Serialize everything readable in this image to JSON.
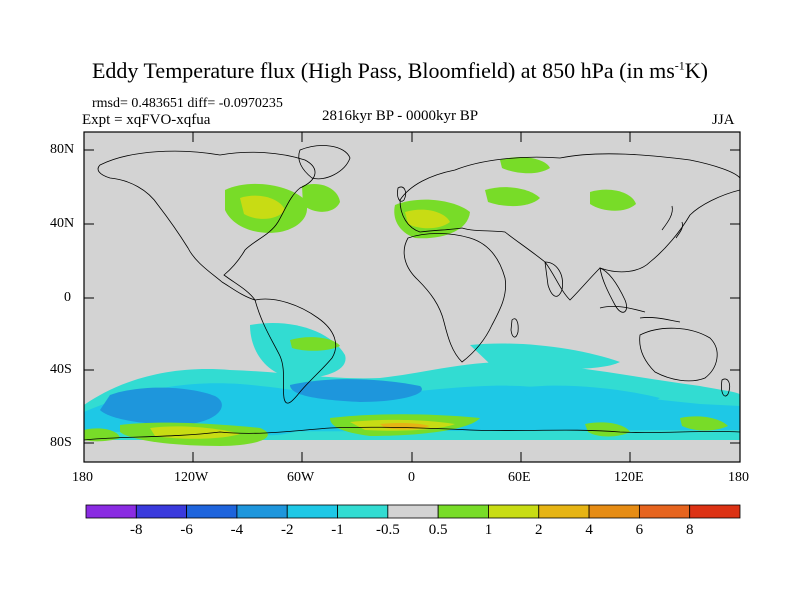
{
  "title": {
    "main": "Eddy Temperature flux (High Pass, Bloomfield) at 850 hPa (in ms",
    "sup": "-1",
    "tail": "K)"
  },
  "stats": "rmsd= 0.483651 diff= -0.0970235",
  "expt": "Expt = xqFVO-xqfua",
  "period": "2816kyr BP - 0000kyr BP",
  "season": "JJA",
  "axes": {
    "lat_labels": [
      "80N",
      "40N",
      "0",
      "40S",
      "80S"
    ],
    "lon_labels": [
      "180",
      "120W",
      "60W",
      "0",
      "60E",
      "120E",
      "180"
    ]
  },
  "colorbar": {
    "labels": [
      "-8",
      "-6",
      "-4",
      "-2",
      "-1",
      "-0.5",
      "0.5",
      "1",
      "2",
      "4",
      "6",
      "8"
    ],
    "colors": [
      "#8a2be2",
      "#3a3adc",
      "#1e64dc",
      "#1e96dc",
      "#1ec8e6",
      "#32dcd2",
      "#d3d3d3",
      "#78dc28",
      "#c8dc14",
      "#e6b414",
      "#e68c14",
      "#e6641e",
      "#dc3214"
    ]
  },
  "colors": {
    "background_field": "#d3d3d3",
    "coast": "#000000"
  }
}
